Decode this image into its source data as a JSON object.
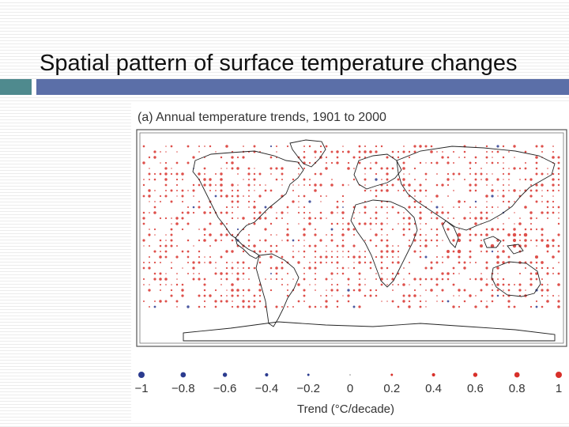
{
  "slide": {
    "title": "Spatial pattern of surface temperature changes"
  },
  "figure": {
    "panel_title": "(a) Annual temperature trends, 1901 to 2000",
    "legend": {
      "title": "Trend (°C/decade)",
      "ticks": [
        {
          "label": "−1",
          "value": -1,
          "color": "#2b3b8f"
        },
        {
          "label": "−0.8",
          "value": -0.8,
          "color": "#2b3b8f"
        },
        {
          "label": "−0.6",
          "value": -0.6,
          "color": "#2b3b8f"
        },
        {
          "label": "−0.4",
          "value": -0.4,
          "color": "#2b3b8f"
        },
        {
          "label": "−0.2",
          "value": -0.2,
          "color": "#2b3b8f"
        },
        {
          "label": "0",
          "value": 0,
          "color": "#888888"
        },
        {
          "label": "0.2",
          "value": 0.2,
          "color": "#d8302a"
        },
        {
          "label": "0.4",
          "value": 0.4,
          "color": "#d8302a"
        },
        {
          "label": "0.6",
          "value": 0.6,
          "color": "#d8302a"
        },
        {
          "label": "0.8",
          "value": 0.8,
          "color": "#d8302a"
        },
        {
          "label": "1",
          "value": 1,
          "color": "#d8302a"
        }
      ]
    },
    "colors": {
      "warming": "#d8302a",
      "cooling": "#2b3b8f",
      "coastline": "#222222"
    }
  }
}
